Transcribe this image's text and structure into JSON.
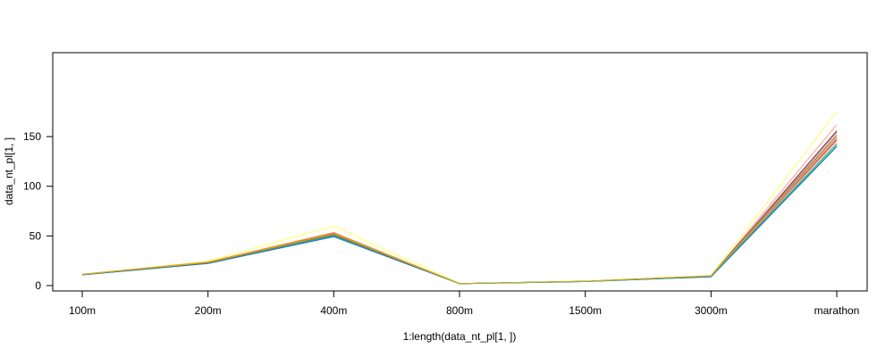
{
  "chart_data": {
    "type": "line",
    "title": "",
    "xlabel": "1:length(data_nt_pl[1, ])",
    "ylabel": "data_nt_pl[1, ]",
    "categories": [
      "100m",
      "200m",
      "400m",
      "800m",
      "1500m",
      "3000m",
      "marathon"
    ],
    "y_ticks": [
      "0",
      "50",
      "100",
      "150"
    ],
    "ylim": [
      -3,
      157
    ],
    "grid": false,
    "legend": "none",
    "series": [
      {
        "color": "#ffff66",
        "values": [
          11.2,
          24.5,
          60.0,
          2.2,
          4.6,
          10.2,
          175.0
        ]
      },
      {
        "color": "#ff9999",
        "values": [
          11.3,
          23.6,
          53.5,
          2.1,
          4.4,
          9.8,
          162.0
        ]
      },
      {
        "color": "#a0522d",
        "values": [
          11.2,
          23.3,
          52.7,
          2.1,
          4.3,
          9.5,
          155.0
        ]
      },
      {
        "color": "#9467bd",
        "values": [
          11.1,
          23.2,
          52.4,
          2.1,
          4.3,
          9.4,
          152.0
        ]
      },
      {
        "color": "#ff7f0e",
        "values": [
          11.4,
          23.8,
          53.2,
          2.1,
          4.4,
          9.9,
          150.0
        ]
      },
      {
        "color": "#d62728",
        "values": [
          11.0,
          22.9,
          51.7,
          2.0,
          4.2,
          9.3,
          147.0
        ]
      },
      {
        "color": "#e377c2",
        "values": [
          10.9,
          22.8,
          51.0,
          2.0,
          4.1,
          9.2,
          146.0
        ]
      },
      {
        "color": "#2ca02c",
        "values": [
          10.9,
          22.5,
          50.3,
          2.0,
          4.1,
          9.0,
          143.0
        ]
      },
      {
        "color": "#17becf",
        "values": [
          11.0,
          22.6,
          50.0,
          2.0,
          4.1,
          9.1,
          141.0
        ]
      },
      {
        "color": "#1f77b4",
        "values": [
          10.8,
          22.3,
          49.2,
          1.9,
          4.0,
          8.8,
          140.0
        ]
      },
      {
        "color": "#8c564b",
        "values": [
          11.1,
          23.0,
          51.3,
          2.0,
          4.2,
          9.6,
          156.0
        ]
      },
      {
        "color": "#bcbd22",
        "values": [
          11.2,
          23.4,
          52.0,
          2.1,
          4.3,
          9.7,
          149.0
        ]
      }
    ]
  }
}
